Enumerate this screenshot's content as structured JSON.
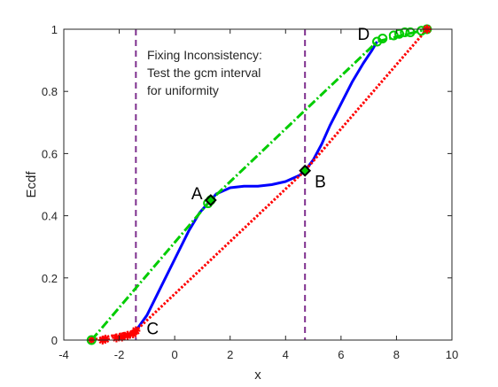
{
  "chart_data": {
    "type": "line",
    "title": "",
    "xlabel": "x",
    "ylabel": "Ecdf",
    "xlim": [
      -4,
      10
    ],
    "ylim": [
      0,
      1
    ],
    "x_ticks": [
      -4,
      -2,
      0,
      2,
      4,
      6,
      8,
      10
    ],
    "y_ticks": [
      0,
      0.2,
      0.4,
      0.6,
      0.8,
      1
    ],
    "x_tick_labels": [
      "-4",
      "-2",
      "0",
      "2",
      "4",
      "6",
      "8",
      "10"
    ],
    "y_tick_labels": [
      "0",
      "0.2",
      "0.4",
      "0.6",
      "0.8",
      "1"
    ],
    "grid": false,
    "annotation": [
      "Fixing Inconsistency:",
      "Test the gcm interval",
      "for uniformity"
    ],
    "vertical_lines": [
      {
        "x": -1.4,
        "color": "#7e2f8e",
        "style": "dashed"
      },
      {
        "x": 4.7,
        "color": "#7e2f8e",
        "style": "dashed"
      }
    ],
    "point_labels": [
      {
        "text": "A",
        "x": 1.3,
        "y": 0.45
      },
      {
        "text": "B",
        "x": 4.7,
        "y": 0.545
      },
      {
        "text": "C",
        "x": -1.4,
        "y": 0.03
      },
      {
        "text": "D",
        "x": 7.3,
        "y": 0.96
      }
    ],
    "series": [
      {
        "color": "#0000ff",
        "style": "solid",
        "x": [
          -1.4,
          -1.0,
          -0.5,
          0.0,
          0.5,
          0.9,
          1.3,
          1.5,
          2.0,
          2.5,
          3.0,
          3.5,
          4.0,
          4.5,
          4.7,
          5.0,
          5.3,
          5.6,
          6.0,
          6.4,
          6.8,
          7.1,
          7.3
        ],
        "y": [
          0.03,
          0.08,
          0.17,
          0.26,
          0.35,
          0.41,
          0.45,
          0.47,
          0.49,
          0.495,
          0.495,
          0.5,
          0.51,
          0.53,
          0.545,
          0.58,
          0.63,
          0.69,
          0.76,
          0.83,
          0.89,
          0.93,
          0.96
        ]
      },
      {
        "color": "#00cc00",
        "style": "dash-dot",
        "x": [
          -3.0,
          1.3,
          7.3,
          9.1
        ],
        "y": [
          0.0,
          0.45,
          0.96,
          1.0
        ]
      },
      {
        "color": "#ff0000",
        "style": "dotted",
        "x": [
          -3.0,
          -1.4,
          4.7,
          9.1
        ],
        "y": [
          0.0,
          0.03,
          0.545,
          1.0
        ]
      }
    ],
    "marker_series": [
      {
        "color": "#ff0000",
        "marker": "star",
        "x": [
          -3.0,
          -2.6,
          -2.5,
          -2.1,
          -1.9,
          -1.7,
          -1.5,
          -1.4
        ],
        "y": [
          0.0,
          0.0,
          0.003,
          0.007,
          0.01,
          0.015,
          0.02,
          0.03
        ]
      },
      {
        "color": "#00cc00",
        "marker": "circle",
        "x": [
          -3.0,
          1.2,
          1.3,
          7.3,
          7.5,
          7.9,
          8.1,
          8.3,
          8.5,
          8.9,
          9.1
        ],
        "y": [
          0.0,
          0.44,
          0.45,
          0.96,
          0.97,
          0.98,
          0.985,
          0.99,
          0.99,
          0.995,
          1.0
        ]
      },
      {
        "color": "#ff0000",
        "marker": "star",
        "x": [
          9.1
        ],
        "y": [
          1.0
        ]
      },
      {
        "color": "#000000",
        "fill": "#00cc00",
        "marker": "diamond",
        "x": [
          1.3,
          4.7
        ],
        "y": [
          0.45,
          0.545
        ]
      }
    ]
  }
}
